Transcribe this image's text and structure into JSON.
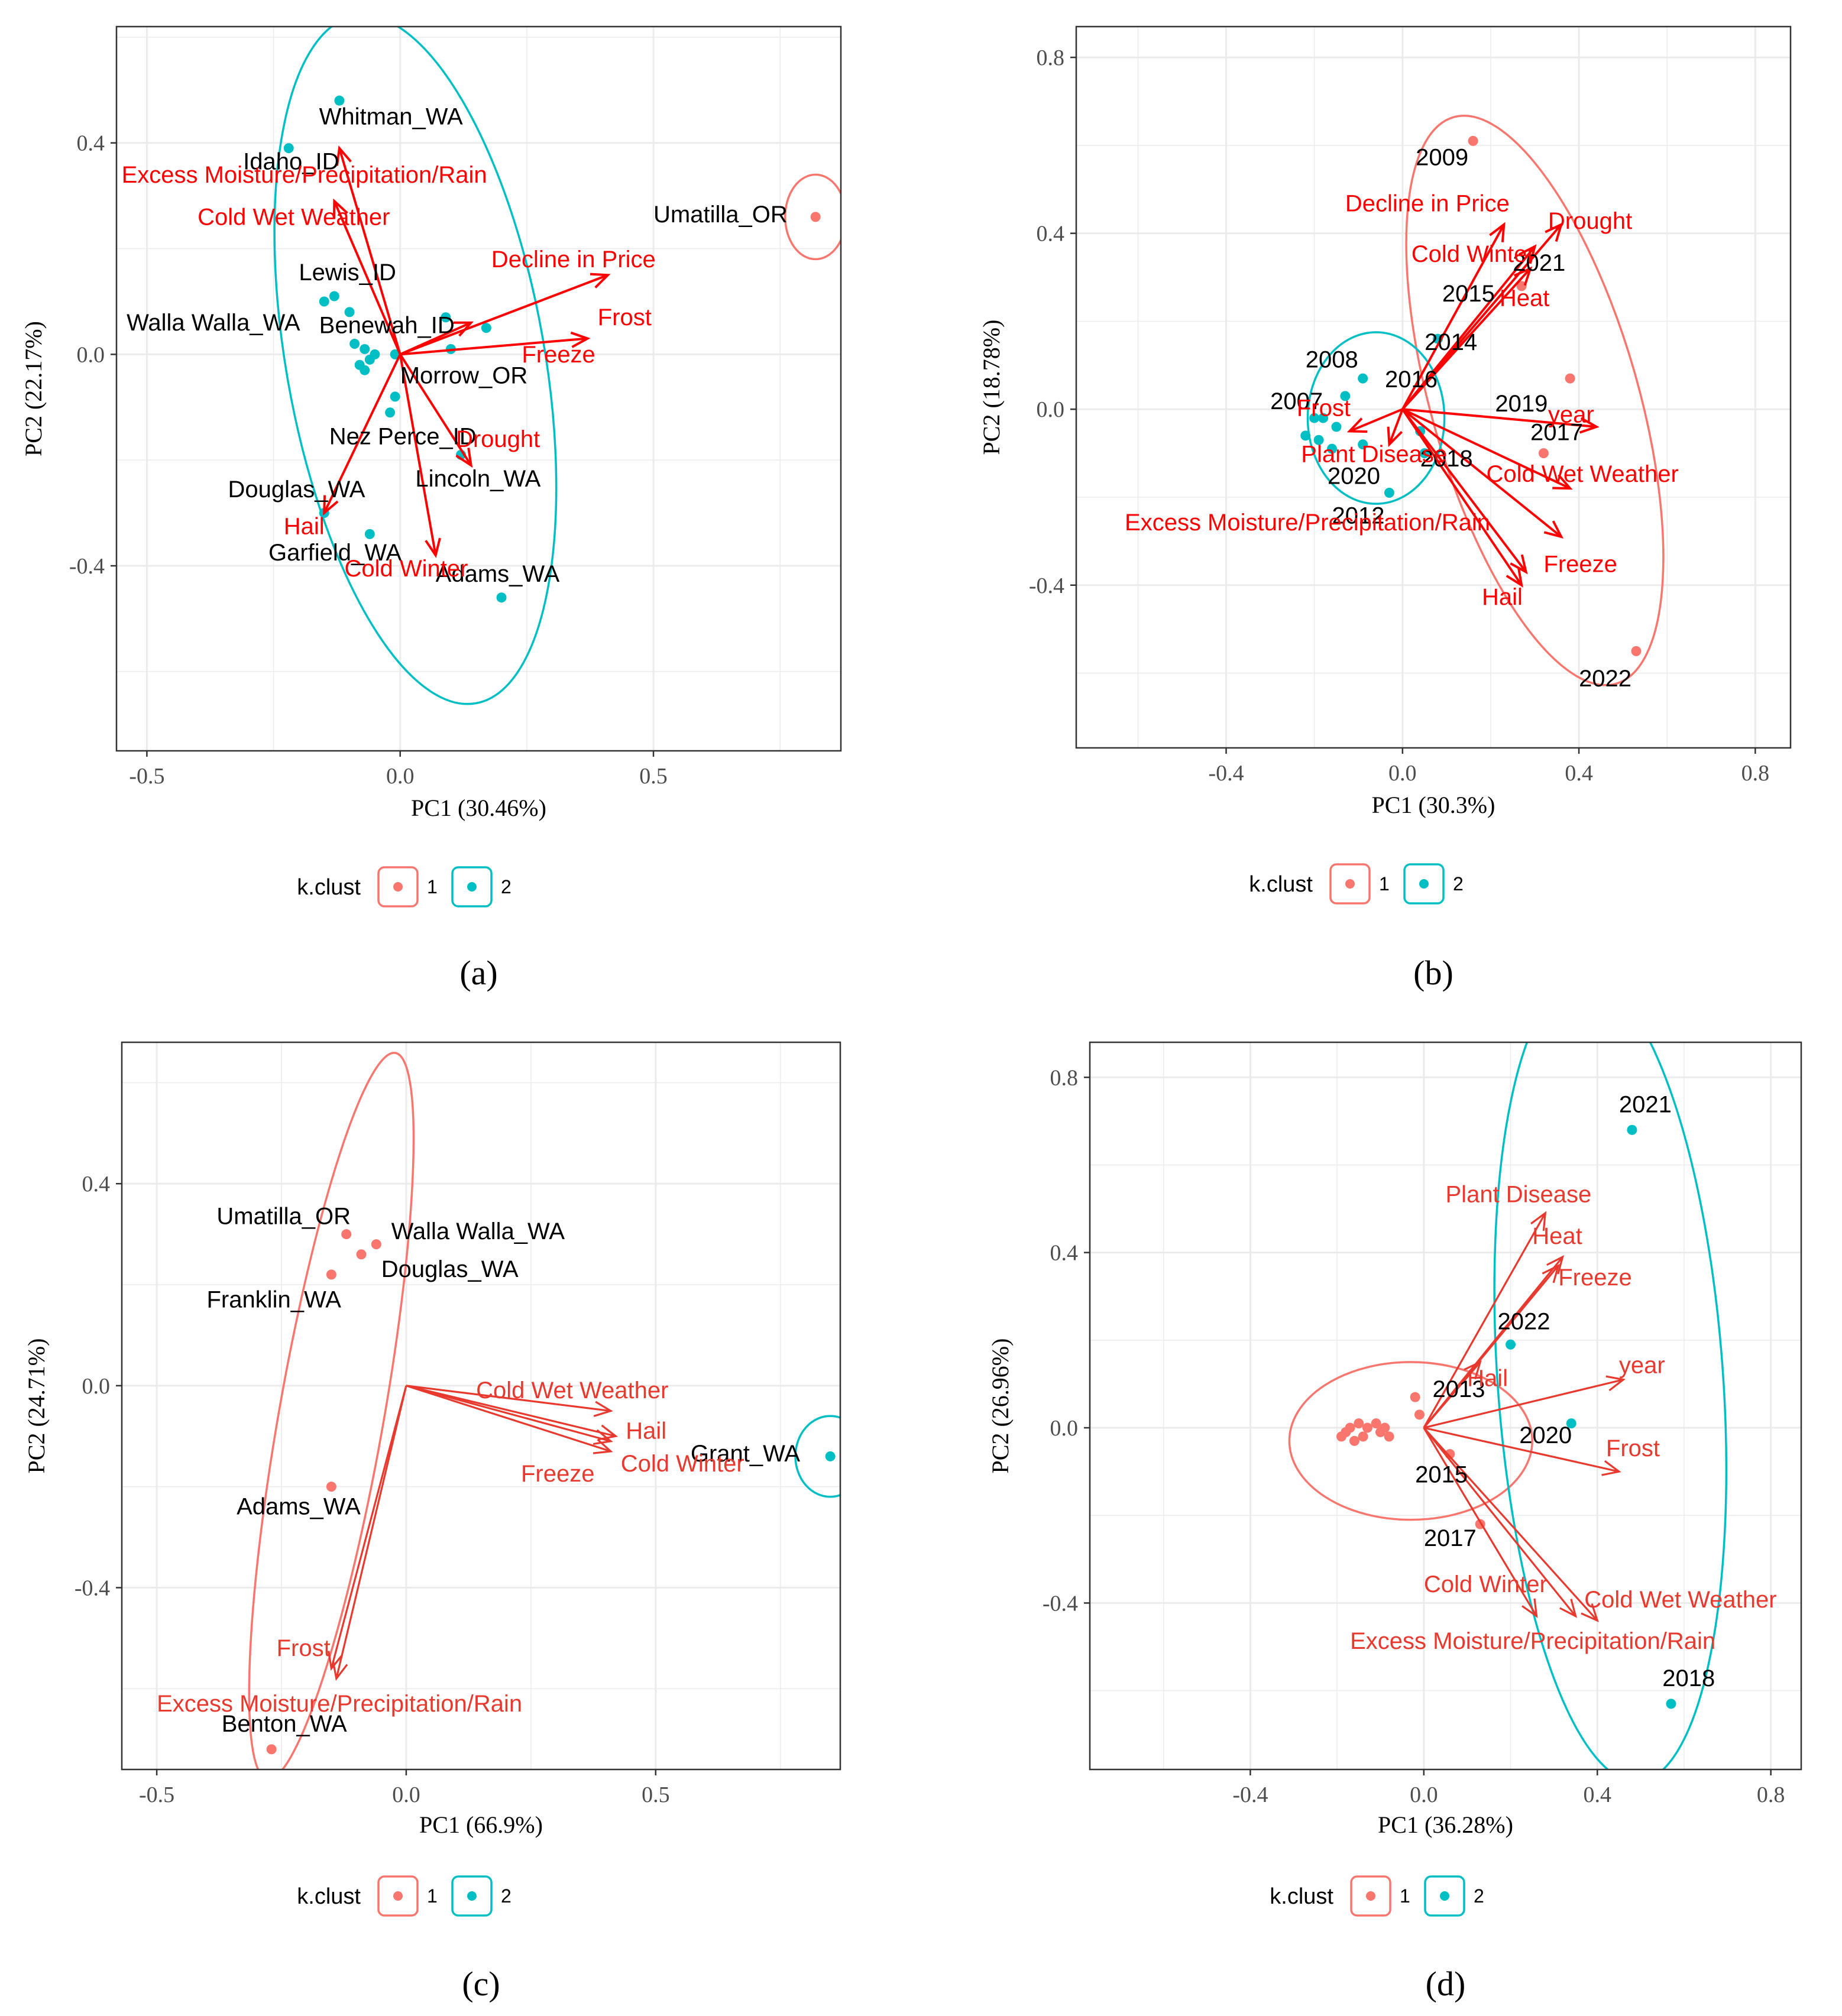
{
  "colors": {
    "cluster1": "#f8766d",
    "cluster2": "#00bfc4",
    "arrow": "#ff0000",
    "arrow_light": "#e8392e",
    "grid": "#ebebeb",
    "panel_border": "#333333"
  },
  "legend": {
    "title": "k.clust",
    "labels": [
      "1",
      "2"
    ]
  },
  "chart_data": [
    {
      "type": "scatter",
      "subtype": "pca-biplot",
      "panel_label": "(a)",
      "xlabel": "PC1 (30.46%)",
      "ylabel": "PC2 (22.17%)",
      "xlim": [
        -0.56,
        0.87
      ],
      "ylim": [
        -0.75,
        0.62
      ],
      "xticks": [
        -0.5,
        0.0,
        0.5
      ],
      "xtick_labels": [
        "-0.5",
        "0.0",
        "0.5"
      ],
      "yticks": [
        -0.4,
        0.0,
        0.4
      ],
      "yticks_labels": [
        "-0.4",
        "0.0",
        "0.4"
      ],
      "arrow_style": "bold",
      "points": [
        {
          "x": -0.12,
          "y": 0.48,
          "cluster": 2
        },
        {
          "x": -0.22,
          "y": 0.39,
          "cluster": 2
        },
        {
          "x": 0.82,
          "y": 0.26,
          "cluster": 1
        },
        {
          "x": -0.15,
          "y": 0.1,
          "cluster": 2
        },
        {
          "x": -0.13,
          "y": 0.11,
          "cluster": 2
        },
        {
          "x": -0.1,
          "y": 0.08,
          "cluster": 2
        },
        {
          "x": -0.09,
          "y": 0.02,
          "cluster": 2
        },
        {
          "x": -0.07,
          "y": 0.01,
          "cluster": 2
        },
        {
          "x": -0.06,
          "y": -0.01,
          "cluster": 2
        },
        {
          "x": -0.05,
          "y": 0.0,
          "cluster": 2
        },
        {
          "x": -0.08,
          "y": -0.02,
          "cluster": 2
        },
        {
          "x": -0.07,
          "y": -0.03,
          "cluster": 2
        },
        {
          "x": -0.01,
          "y": -0.08,
          "cluster": 2
        },
        {
          "x": -0.02,
          "y": -0.11,
          "cluster": 2
        },
        {
          "x": -0.01,
          "y": 0.0,
          "cluster": 2
        },
        {
          "x": 0.09,
          "y": 0.07,
          "cluster": 2
        },
        {
          "x": 0.1,
          "y": 0.01,
          "cluster": 2
        },
        {
          "x": 0.17,
          "y": 0.05,
          "cluster": 2
        },
        {
          "x": 0.12,
          "y": -0.19,
          "cluster": 2
        },
        {
          "x": -0.15,
          "y": -0.3,
          "cluster": 2
        },
        {
          "x": -0.06,
          "y": -0.34,
          "cluster": 2
        },
        {
          "x": 0.2,
          "y": -0.46,
          "cluster": 2
        }
      ],
      "point_labels": [
        {
          "text": "Whitman_WA",
          "x": -0.16,
          "y": 0.435
        },
        {
          "text": "Idaho_ID",
          "x": -0.31,
          "y": 0.35
        },
        {
          "text": "Umatilla_OR",
          "x": 0.5,
          "y": 0.25
        },
        {
          "text": "Lewis_ID",
          "x": -0.2,
          "y": 0.14
        },
        {
          "text": "Walla Walla_WA",
          "x": -0.54,
          "y": 0.045
        },
        {
          "text": "Benewah_ID",
          "x": -0.16,
          "y": 0.04
        },
        {
          "text": "Morrow_OR",
          "x": 0.0,
          "y": -0.055
        },
        {
          "text": "Nez Perce_ID",
          "x": -0.14,
          "y": -0.17
        },
        {
          "text": "Lincoln_WA",
          "x": 0.03,
          "y": -0.25
        },
        {
          "text": "Douglas_WA",
          "x": -0.34,
          "y": -0.27
        },
        {
          "text": "Garfield_WA",
          "x": -0.26,
          "y": -0.39
        },
        {
          "text": "Adams_WA",
          "x": 0.07,
          "y": -0.43
        }
      ],
      "vectors": [
        {
          "name": "Excess Moisture/Precipitation/Rain",
          "x": -0.12,
          "y": 0.39,
          "lx": -0.55,
          "ly": 0.325
        },
        {
          "name": "Cold Wet Weather",
          "x": -0.13,
          "y": 0.29,
          "lx": -0.4,
          "ly": 0.245
        },
        {
          "name": "Decline in Price",
          "x": 0.41,
          "y": 0.15,
          "lx": 0.18,
          "ly": 0.165
        },
        {
          "name": "Frost",
          "x": 0.37,
          "y": 0.03,
          "lx": 0.39,
          "ly": 0.055
        },
        {
          "name": "Freeze",
          "x": 0.14,
          "y": 0.06,
          "lx": 0.24,
          "ly": -0.015
        },
        {
          "name": "Drought",
          "x": 0.14,
          "y": -0.21,
          "lx": 0.11,
          "ly": -0.175
        },
        {
          "name": "Hail",
          "x": -0.15,
          "y": -0.3,
          "lx": -0.23,
          "ly": -0.34
        },
        {
          "name": "Cold Winter",
          "x": 0.07,
          "y": -0.38,
          "lx": -0.11,
          "ly": -0.42
        }
      ],
      "ellipses": [
        {
          "cluster": 2,
          "cx": 0.03,
          "cy": -0.01,
          "rx": 0.255,
          "ry": 0.66,
          "angle": -10
        },
        {
          "cluster": 1,
          "cx": 0.82,
          "cy": 0.26,
          "rx": 0.06,
          "ry": 0.08,
          "angle": 0
        }
      ]
    },
    {
      "type": "scatter",
      "subtype": "pca-biplot",
      "panel_label": "(b)",
      "xlabel": "PC1 (30.3%)",
      "ylabel": "PC2 (18.78%)",
      "xlim": [
        -0.74,
        0.88
      ],
      "ylim": [
        -0.77,
        0.87
      ],
      "xticks": [
        -0.4,
        0.0,
        0.4,
        0.8
      ],
      "xtick_labels": [
        "-0.4",
        "0.0",
        "0.4",
        "0.8"
      ],
      "yticks": [
        -0.4,
        0.0,
        0.4,
        0.8
      ],
      "yticks_labels": [
        "-0.4",
        "0.0",
        "0.4",
        "0.8"
      ],
      "arrow_style": "bold",
      "points": [
        {
          "x": 0.16,
          "y": 0.61,
          "cluster": 1
        },
        {
          "x": 0.27,
          "y": 0.28,
          "cluster": 1
        },
        {
          "x": 0.38,
          "y": 0.07,
          "cluster": 1
        },
        {
          "x": 0.32,
          "y": -0.1,
          "cluster": 1
        },
        {
          "x": 0.53,
          "y": -0.55,
          "cluster": 1
        },
        {
          "x": 0.08,
          "y": 0.16,
          "cluster": 2
        },
        {
          "x": -0.09,
          "y": 0.07,
          "cluster": 2
        },
        {
          "x": -0.13,
          "y": 0.03,
          "cluster": 2
        },
        {
          "x": -0.18,
          "y": -0.02,
          "cluster": 2
        },
        {
          "x": -0.2,
          "y": -0.02,
          "cluster": 2
        },
        {
          "x": -0.15,
          "y": -0.04,
          "cluster": 2
        },
        {
          "x": -0.22,
          "y": -0.06,
          "cluster": 2
        },
        {
          "x": -0.19,
          "y": -0.07,
          "cluster": 2
        },
        {
          "x": -0.16,
          "y": -0.09,
          "cluster": 2
        },
        {
          "x": -0.09,
          "y": -0.08,
          "cluster": 2
        },
        {
          "x": -0.03,
          "y": -0.19,
          "cluster": 2
        },
        {
          "x": 0.04,
          "y": -0.05,
          "cluster": 2
        },
        {
          "x": 0.05,
          "y": -0.1,
          "cluster": 2
        }
      ],
      "point_labels": [
        {
          "text": "2009",
          "x": 0.03,
          "y": 0.555
        },
        {
          "text": "2021",
          "x": 0.25,
          "y": 0.315
        },
        {
          "text": "2015",
          "x": 0.09,
          "y": 0.245
        },
        {
          "text": "2014",
          "x": 0.05,
          "y": 0.135
        },
        {
          "text": "2008",
          "x": -0.22,
          "y": 0.095
        },
        {
          "text": "2016",
          "x": -0.04,
          "y": 0.05
        },
        {
          "text": "2007",
          "x": -0.3,
          "y": 0.0
        },
        {
          "text": "2019",
          "x": 0.21,
          "y": -0.005
        },
        {
          "text": "2017",
          "x": 0.29,
          "y": -0.07
        },
        {
          "text": "2018",
          "x": 0.04,
          "y": -0.13
        },
        {
          "text": "2020",
          "x": -0.17,
          "y": -0.17
        },
        {
          "text": "2012",
          "x": -0.16,
          "y": -0.26
        },
        {
          "text": "2022",
          "x": 0.4,
          "y": -0.63
        }
      ],
      "vectors": [
        {
          "name": "Decline in Price",
          "x": 0.23,
          "y": 0.42,
          "lx": -0.13,
          "ly": 0.45
        },
        {
          "name": "Drought",
          "x": 0.36,
          "y": 0.42,
          "lx": 0.33,
          "ly": 0.41
        },
        {
          "name": "Cold Winter",
          "x": 0.3,
          "y": 0.37,
          "lx": 0.02,
          "ly": 0.335
        },
        {
          "name": "Heat",
          "x": 0.29,
          "y": 0.32,
          "lx": 0.22,
          "ly": 0.235
        },
        {
          "name": "Frost",
          "x": -0.12,
          "y": -0.05,
          "lx": -0.24,
          "ly": -0.015
        },
        {
          "name": "Plant Disease",
          "x": -0.03,
          "y": -0.08,
          "lx": -0.23,
          "ly": -0.12
        },
        {
          "name": "year",
          "x": 0.44,
          "y": -0.04,
          "lx": 0.33,
          "ly": -0.03
        },
        {
          "name": "Cold Wet Weather",
          "x": 0.38,
          "y": -0.18,
          "lx": 0.19,
          "ly": -0.165
        },
        {
          "name": "Excess Moisture/Precipitation/Rain",
          "x": 0.36,
          "y": -0.29,
          "lx": -0.63,
          "ly": -0.275
        },
        {
          "name": "Freeze",
          "x": 0.28,
          "y": -0.37,
          "lx": 0.32,
          "ly": -0.37
        },
        {
          "name": "Hail",
          "x": 0.27,
          "y": -0.4,
          "lx": 0.18,
          "ly": -0.445
        }
      ],
      "ellipses": [
        {
          "cluster": 1,
          "cx": 0.3,
          "cy": 0.02,
          "rx": 0.235,
          "ry": 0.67,
          "angle": -16
        },
        {
          "cluster": 2,
          "cx": -0.06,
          "cy": -0.02,
          "rx": 0.155,
          "ry": 0.195,
          "angle": 0
        }
      ]
    },
    {
      "type": "scatter",
      "subtype": "pca-biplot",
      "panel_label": "(c)",
      "xlabel": "PC1 (66.9%)",
      "ylabel": "PC2 (24.71%)",
      "xlim": [
        -0.57,
        0.87
      ],
      "ylim": [
        -0.76,
        0.68
      ],
      "xticks": [
        -0.5,
        0.0,
        0.5
      ],
      "xtick_labels": [
        "-0.5",
        "0.0",
        "0.5"
      ],
      "yticks": [
        -0.4,
        0.0,
        0.4
      ],
      "yticks_labels": [
        "-0.4",
        "0.0",
        "0.4"
      ],
      "arrow_style": "thin",
      "points": [
        {
          "x": -0.12,
          "y": 0.3,
          "cluster": 1
        },
        {
          "x": -0.09,
          "y": 0.26,
          "cluster": 1
        },
        {
          "x": -0.06,
          "y": 0.28,
          "cluster": 1
        },
        {
          "x": -0.15,
          "y": 0.22,
          "cluster": 1
        },
        {
          "x": -0.15,
          "y": -0.2,
          "cluster": 1
        },
        {
          "x": -0.27,
          "y": -0.72,
          "cluster": 1
        },
        {
          "x": 0.85,
          "y": -0.14,
          "cluster": 2
        }
      ],
      "point_labels": [
        {
          "text": "Umatilla_OR",
          "x": -0.38,
          "y": 0.32
        },
        {
          "text": "Walla Walla_WA",
          "x": -0.03,
          "y": 0.29
        },
        {
          "text": "Douglas_WA",
          "x": -0.05,
          "y": 0.215
        },
        {
          "text": "Franklin_WA",
          "x": -0.4,
          "y": 0.155
        },
        {
          "text": "Adams_WA",
          "x": -0.34,
          "y": -0.255
        },
        {
          "text": "Benton_WA",
          "x": -0.37,
          "y": -0.685
        },
        {
          "text": "Grant_WA",
          "x": 0.57,
          "y": -0.15
        }
      ],
      "vectors": [
        {
          "name": "Cold Wet Weather",
          "x": 0.41,
          "y": -0.05,
          "lx": 0.14,
          "ly": -0.025
        },
        {
          "name": "Hail",
          "x": 0.42,
          "y": -0.1,
          "lx": 0.44,
          "ly": -0.105
        },
        {
          "name": "Cold Winter",
          "x": 0.41,
          "y": -0.13,
          "lx": 0.43,
          "ly": -0.17
        },
        {
          "name": "Freeze",
          "x": 0.41,
          "y": -0.11,
          "lx": 0.23,
          "ly": -0.19
        },
        {
          "name": "Frost",
          "x": -0.15,
          "y": -0.56,
          "lx": -0.26,
          "ly": -0.535
        },
        {
          "name": "Excess Moisture/Precipitation/Rain",
          "x": -0.14,
          "y": -0.58,
          "lx": -0.5,
          "ly": -0.645
        }
      ],
      "ellipses": [
        {
          "cluster": 1,
          "cx": -0.15,
          "cy": -0.06,
          "rx": 0.105,
          "ry": 0.73,
          "angle": 10
        },
        {
          "cluster": 2,
          "cx": 0.85,
          "cy": -0.14,
          "rx": 0.07,
          "ry": 0.08,
          "angle": 0
        }
      ]
    },
    {
      "type": "scatter",
      "subtype": "pca-biplot",
      "panel_label": "(d)",
      "xlabel": "PC1 (36.28%)",
      "ylabel": "PC2 (26.96%)",
      "xlim": [
        -0.77,
        0.87
      ],
      "ylim": [
        -0.78,
        0.88
      ],
      "xticks": [
        -0.4,
        0.0,
        0.4,
        0.8
      ],
      "xtick_labels": [
        "-0.4",
        "0.0",
        "0.4",
        "0.8"
      ],
      "yticks": [
        -0.4,
        0.0,
        0.4,
        0.8
      ],
      "yticks_labels": [
        "-0.4",
        "0.0",
        "0.4",
        "0.8"
      ],
      "arrow_style": "thin",
      "points": [
        {
          "x": -0.19,
          "y": -0.02,
          "cluster": 1
        },
        {
          "x": -0.18,
          "y": -0.01,
          "cluster": 1
        },
        {
          "x": -0.17,
          "y": 0.0,
          "cluster": 1
        },
        {
          "x": -0.16,
          "y": -0.03,
          "cluster": 1
        },
        {
          "x": -0.15,
          "y": 0.01,
          "cluster": 1
        },
        {
          "x": -0.14,
          "y": -0.02,
          "cluster": 1
        },
        {
          "x": -0.13,
          "y": 0.0,
          "cluster": 1
        },
        {
          "x": -0.11,
          "y": 0.01,
          "cluster": 1
        },
        {
          "x": -0.1,
          "y": -0.01,
          "cluster": 1
        },
        {
          "x": -0.09,
          "y": 0.0,
          "cluster": 1
        },
        {
          "x": -0.08,
          "y": -0.02,
          "cluster": 1
        },
        {
          "x": -0.02,
          "y": 0.07,
          "cluster": 1
        },
        {
          "x": -0.01,
          "y": 0.03,
          "cluster": 1
        },
        {
          "x": 0.06,
          "y": -0.06,
          "cluster": 1
        },
        {
          "x": 0.13,
          "y": -0.22,
          "cluster": 1
        },
        {
          "x": 0.48,
          "y": 0.68,
          "cluster": 2
        },
        {
          "x": 0.2,
          "y": 0.19,
          "cluster": 2
        },
        {
          "x": 0.34,
          "y": 0.01,
          "cluster": 2
        },
        {
          "x": 0.57,
          "y": -0.63,
          "cluster": 2
        }
      ],
      "point_labels": [
        {
          "text": "2021",
          "x": 0.45,
          "y": 0.72
        },
        {
          "text": "2022",
          "x": 0.17,
          "y": 0.225
        },
        {
          "text": "2013",
          "x": 0.02,
          "y": 0.07
        },
        {
          "text": "2020",
          "x": 0.22,
          "y": -0.035
        },
        {
          "text": "2015",
          "x": -0.02,
          "y": -0.125
        },
        {
          "text": "2017",
          "x": 0.0,
          "y": -0.27
        },
        {
          "text": "2018",
          "x": 0.55,
          "y": -0.59
        }
      ],
      "vectors": [
        {
          "name": "Plant Disease",
          "x": 0.28,
          "y": 0.49,
          "lx": 0.05,
          "ly": 0.515
        },
        {
          "name": "Heat",
          "x": 0.32,
          "y": 0.39,
          "lx": 0.25,
          "ly": 0.42
        },
        {
          "name": "Freeze",
          "x": 0.31,
          "y": 0.37,
          "lx": 0.31,
          "ly": 0.325
        },
        {
          "name": "year",
          "x": 0.46,
          "y": 0.11,
          "lx": 0.45,
          "ly": 0.125
        },
        {
          "name": "Hail",
          "x": 0.13,
          "y": 0.15,
          "lx": 0.1,
          "ly": 0.095
        },
        {
          "name": "Frost",
          "x": 0.45,
          "y": -0.1,
          "lx": 0.42,
          "ly": -0.065
        },
        {
          "name": "Cold Winter",
          "x": 0.26,
          "y": -0.43,
          "lx": 0.0,
          "ly": -0.375
        },
        {
          "name": "Cold Wet Weather",
          "x": 0.4,
          "y": -0.44,
          "lx": 0.37,
          "ly": -0.41
        },
        {
          "name": "Excess Moisture/Precipitation/Rain",
          "x": 0.35,
          "y": -0.43,
          "lx": -0.17,
          "ly": -0.505
        }
      ],
      "ellipses": [
        {
          "cluster": 1,
          "cx": -0.03,
          "cy": -0.03,
          "rx": 0.28,
          "ry": 0.18,
          "angle": 0
        },
        {
          "cluster": 2,
          "cx": 0.43,
          "cy": 0.11,
          "rx": 0.26,
          "ry": 0.92,
          "angle": -4
        }
      ]
    }
  ]
}
